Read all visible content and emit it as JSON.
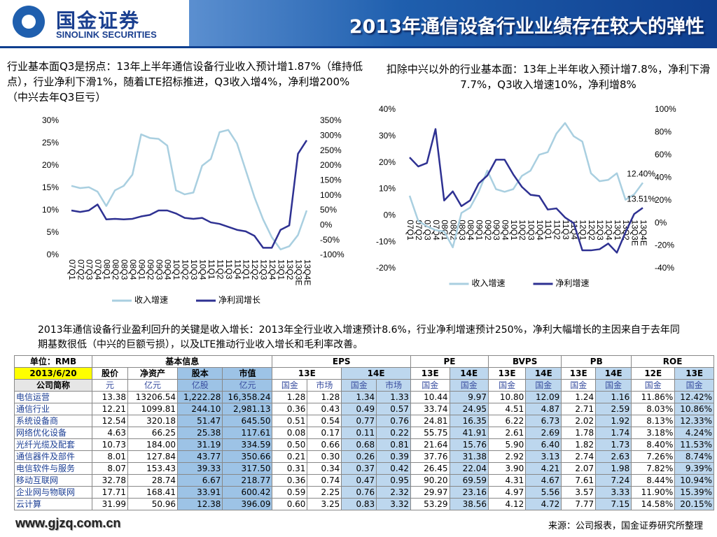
{
  "header": {
    "logo_cn": "国金证券",
    "logo_en": "SINOLINK SECURITIES",
    "title": "2013年通信设备行业业绩存在较大的弹性"
  },
  "chart_data": [
    {
      "type": "line",
      "title": "行业基本面Q3是拐点：13年上半年通信设备行业收入预计增1.87%（维持低点），行业净利下滑1%，随着LTE招标推进，Q3收入增4%，净利增200%（中兴去年Q3巨亏）",
      "categories": [
        "07Q1",
        "07Q2",
        "07Q3",
        "07Q4",
        "08Q1",
        "08Q2",
        "08Q3",
        "08Q4",
        "09Q1",
        "09Q2",
        "09Q3",
        "09Q4",
        "10Q1",
        "10Q2",
        "10Q3",
        "10Q4",
        "11Q1",
        "11Q2",
        "11Q3",
        "11Q4",
        "12Q1",
        "12Q2",
        "12Q3",
        "12Q4",
        "13Q1",
        "13Q2",
        "13Q3E",
        "13Q4E"
      ],
      "series": [
        {
          "name": "收入增速",
          "color": "#a9cfe0",
          "values": [
            15.5,
            15,
            15.2,
            14.2,
            11,
            14.5,
            15.5,
            18,
            27,
            26.2,
            26,
            24.5,
            14.5,
            13.6,
            14,
            20,
            21.5,
            27.5,
            28,
            25,
            19,
            13,
            8,
            4,
            1.3,
            2,
            4.5,
            10
          ]
        },
        {
          "name": "净利润增长",
          "color": "#2e3192",
          "axis": "y2",
          "values": [
            50,
            45,
            50,
            70,
            20,
            22,
            20,
            22,
            30,
            35,
            50,
            50,
            40,
            25,
            22,
            25,
            10,
            5,
            -5,
            -15,
            -20,
            -35,
            -75,
            -75,
            -15,
            0,
            240,
            285
          ]
        }
      ],
      "ylim": [
        0,
        30
      ],
      "yticks": [
        {
          "value": 0,
          "label": "0%"
        },
        {
          "value": 5,
          "label": "5%"
        },
        {
          "value": 10,
          "label": "10%"
        },
        {
          "value": 15,
          "label": "15%"
        },
        {
          "value": 20,
          "label": "20%"
        },
        {
          "value": 25,
          "label": "25%"
        },
        {
          "value": 30,
          "label": "30%"
        }
      ],
      "y2lim": [
        -100,
        350
      ],
      "y2ticks": [
        {
          "value": -100,
          "label": "-100%"
        },
        {
          "value": -50,
          "label": "-50%"
        },
        {
          "value": 0,
          "label": "0%"
        },
        {
          "value": 50,
          "label": "50%"
        },
        {
          "value": 100,
          "label": "100%"
        },
        {
          "value": 150,
          "label": "150%"
        },
        {
          "value": 200,
          "label": "200%"
        },
        {
          "value": 250,
          "label": "250%"
        },
        {
          "value": 300,
          "label": "300%"
        },
        {
          "value": 350,
          "label": "350%"
        }
      ],
      "grid": false,
      "legend": "bottom"
    },
    {
      "type": "line",
      "title": "扣除中兴以外的行业基本面：13年上半年收入预计增7.8%，净利下滑7.7%，Q3收入增速10%，净利增8%",
      "categories": [
        "07Q1",
        "07Q2",
        "07Q3",
        "07Q4",
        "08Q1",
        "08Q2",
        "08Q3",
        "08Q4",
        "09Q1",
        "09Q2",
        "09Q3",
        "09Q4",
        "10Q1",
        "10Q2",
        "10Q3",
        "10Q4",
        "11Q1",
        "11Q2",
        "11Q3",
        "11Q4",
        "12Q1",
        "12Q2",
        "12Q3",
        "12Q4",
        "13Q1",
        "13Q2",
        "13Q3E",
        "13Q4E"
      ],
      "series": [
        {
          "name": "收入增速",
          "color": "#a9cfe0",
          "values": [
            7.5,
            -2,
            -4,
            -5.5,
            -6,
            -12,
            1,
            3,
            9,
            17,
            10,
            9,
            10,
            15,
            17,
            23,
            24,
            31,
            35,
            30,
            28,
            16,
            13,
            13.5,
            16,
            6,
            8,
            12.4
          ],
          "value_labels": [
            null,
            null,
            null,
            null,
            null,
            null,
            null,
            null,
            null,
            null,
            null,
            null,
            null,
            null,
            null,
            null,
            null,
            null,
            null,
            null,
            null,
            null,
            null,
            null,
            null,
            null,
            null,
            "12.40%"
          ]
        },
        {
          "name": "净利增速",
          "color": "#2e3192",
          "axis": "y2",
          "values": [
            58,
            50,
            53,
            83,
            20,
            28,
            15,
            20,
            35,
            42,
            56,
            56,
            43,
            32,
            25,
            24,
            12,
            13,
            5,
            0,
            -24,
            -24,
            -23,
            -18,
            -26,
            -8,
            8,
            13.51
          ],
          "value_labels": [
            null,
            null,
            null,
            null,
            null,
            null,
            null,
            null,
            null,
            null,
            null,
            null,
            null,
            null,
            null,
            null,
            null,
            null,
            null,
            null,
            null,
            null,
            null,
            null,
            null,
            null,
            null,
            "13.51%"
          ]
        }
      ],
      "ylim": [
        -20,
        40
      ],
      "yticks": [
        {
          "value": -20,
          "label": "-20%"
        },
        {
          "value": -10,
          "label": "-10%"
        },
        {
          "value": 0,
          "label": "0%"
        },
        {
          "value": 10,
          "label": "10%"
        },
        {
          "value": 20,
          "label": "20%"
        },
        {
          "value": 30,
          "label": "30%"
        },
        {
          "value": 40,
          "label": "40%"
        }
      ],
      "y2lim": [
        -40,
        100
      ],
      "y2ticks": [
        {
          "value": -40,
          "label": "-40%"
        },
        {
          "value": -20,
          "label": "-20%"
        },
        {
          "value": 0,
          "label": "0%"
        },
        {
          "value": 20,
          "label": "20%"
        },
        {
          "value": 40,
          "label": "40%"
        },
        {
          "value": 60,
          "label": "60%"
        },
        {
          "value": 80,
          "label": "80%"
        },
        {
          "value": 100,
          "label": "100%"
        }
      ],
      "grid": false,
      "legend": "bottom"
    }
  ],
  "summary": "2013年通信设备行业盈利回升的关键是收入增长：2013年全行业收入增速预计8.6%，行业净利增速预计250%，净利大幅增长的主因来自于去年同期基数很低（中兴的巨额亏损），以及LTE推动行业收入增长和毛利率改善。",
  "table": {
    "header": [
      [
        "单位：RMB",
        "基本信息",
        "EPS",
        "PE",
        "BVPS",
        "PB",
        "ROE"
      ],
      [
        "2013/6/20",
        "股价",
        "净资产",
        "股本",
        "市值",
        "13E",
        "14E",
        "13E",
        "14E",
        "13E",
        "14E",
        "13E",
        "14E",
        "12E",
        "13E"
      ],
      [
        "公司简称",
        "元",
        "亿元",
        "亿股",
        "亿元",
        "国金",
        "市场",
        "国金",
        "市场",
        "国金",
        "国金",
        "国金",
        "国金",
        "国金",
        "国金",
        "国金",
        "国金"
      ]
    ],
    "rows": [
      [
        "电信运营",
        "13.38",
        "13206.54",
        "1,222.28",
        "16,358.24",
        "1.28",
        "1.28",
        "1.34",
        "1.33",
        "10.44",
        "9.97",
        "10.80",
        "12.09",
        "1.24",
        "1.16",
        "11.86%",
        "12.42%"
      ],
      [
        "通信行业",
        "12.21",
        "1099.81",
        "244.10",
        "2,981.13",
        "0.36",
        "0.43",
        "0.49",
        "0.57",
        "33.74",
        "24.95",
        "4.51",
        "4.87",
        "2.71",
        "2.59",
        "8.03%",
        "10.86%"
      ],
      [
        "系统设备商",
        "12.54",
        "320.18",
        "51.47",
        "645.50",
        "0.51",
        "0.54",
        "0.77",
        "0.76",
        "24.81",
        "16.35",
        "6.22",
        "6.73",
        "2.02",
        "1.92",
        "8.13%",
        "12.33%"
      ],
      [
        "网络优化设备",
        "4.63",
        "66.25",
        "25.38",
        "117.61",
        "0.08",
        "0.17",
        "0.11",
        "0.22",
        "55.75",
        "41.91",
        "2.61",
        "2.69",
        "1.78",
        "1.74",
        "3.18%",
        "4.24%"
      ],
      [
        "光纤光缆及配套",
        "10.73",
        "184.00",
        "31.19",
        "334.59",
        "0.50",
        "0.66",
        "0.68",
        "0.81",
        "21.64",
        "15.76",
        "5.90",
        "6.40",
        "1.82",
        "1.73",
        "8.40%",
        "11.53%"
      ],
      [
        "通信器件及部件",
        "8.01",
        "127.84",
        "43.77",
        "350.66",
        "0.21",
        "0.30",
        "0.26",
        "0.39",
        "37.76",
        "31.38",
        "2.92",
        "3.13",
        "2.74",
        "2.63",
        "7.26%",
        "8.74%"
      ],
      [
        "电信软件与服务",
        "8.07",
        "153.43",
        "39.33",
        "317.50",
        "0.31",
        "0.34",
        "0.37",
        "0.42",
        "26.45",
        "22.04",
        "3.90",
        "4.21",
        "2.07",
        "1.98",
        "7.82%",
        "9.39%"
      ],
      [
        "移动互联网",
        "32.78",
        "28.74",
        "6.67",
        "218.77",
        "0.36",
        "0.74",
        "0.47",
        "0.95",
        "90.20",
        "69.59",
        "4.31",
        "4.67",
        "7.61",
        "7.24",
        "8.44%",
        "10.94%"
      ],
      [
        "企业网与物联网",
        "17.71",
        "168.41",
        "33.91",
        "600.42",
        "0.59",
        "2.25",
        "0.76",
        "2.32",
        "29.97",
        "23.16",
        "4.97",
        "5.56",
        "3.57",
        "3.33",
        "11.90%",
        "15.39%"
      ],
      [
        "云计算",
        "31.99",
        "50.96",
        "12.38",
        "396.09",
        "0.60",
        "3.25",
        "0.83",
        "3.32",
        "53.29",
        "38.56",
        "4.12",
        "4.72",
        "7.77",
        "7.15",
        "14.58%",
        "20.15%"
      ]
    ]
  },
  "footer": {
    "website": "www.gjzq.com.cn",
    "source": "来源：公司报表，国金证券研究所整理"
  }
}
